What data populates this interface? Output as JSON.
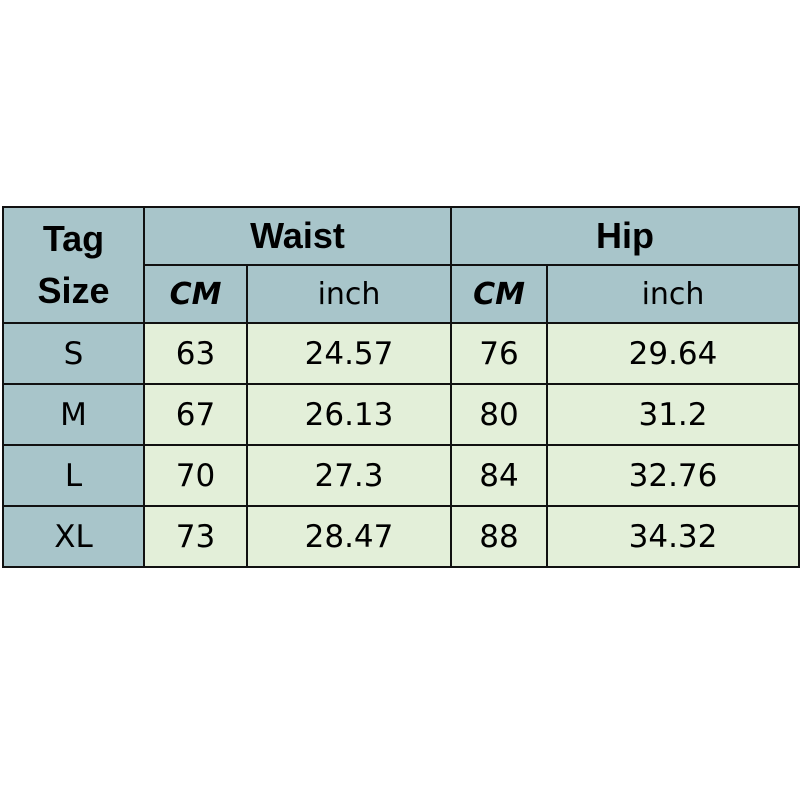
{
  "header": {
    "tag_size": [
      "Tag",
      "Size"
    ],
    "groups": [
      "Waist",
      "Hip"
    ],
    "units": [
      "CM",
      "inch",
      "CM",
      "inch"
    ]
  },
  "rows": [
    {
      "size": "S",
      "waist_cm": "63",
      "waist_inch": "24.57",
      "hip_cm": "76",
      "hip_inch": "29.64"
    },
    {
      "size": "M",
      "waist_cm": "67",
      "waist_inch": "26.13",
      "hip_cm": "80",
      "hip_inch": "31.2"
    },
    {
      "size": "L",
      "waist_cm": "70",
      "waist_inch": "27.3",
      "hip_cm": "84",
      "hip_inch": "32.76"
    },
    {
      "size": "XL",
      "waist_cm": "73",
      "waist_inch": "28.47",
      "hip_cm": "88",
      "hip_inch": "34.32"
    }
  ],
  "colors": {
    "header": "#a8c5ca",
    "body": "#e3efd9",
    "border": "#111111"
  }
}
